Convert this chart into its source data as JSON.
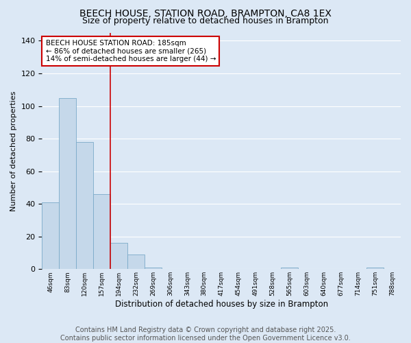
{
  "title": "BEECH HOUSE, STATION ROAD, BRAMPTON, CA8 1EX",
  "subtitle": "Size of property relative to detached houses in Brampton",
  "xlabel": "Distribution of detached houses by size in Brampton",
  "ylabel": "Number of detached properties",
  "categories": [
    "46sqm",
    "83sqm",
    "120sqm",
    "157sqm",
    "194sqm",
    "232sqm",
    "269sqm",
    "306sqm",
    "343sqm",
    "380sqm",
    "417sqm",
    "454sqm",
    "491sqm",
    "528sqm",
    "565sqm",
    "603sqm",
    "640sqm",
    "677sqm",
    "714sqm",
    "751sqm",
    "788sqm"
  ],
  "values": [
    41,
    105,
    78,
    46,
    16,
    9,
    1,
    0,
    0,
    0,
    0,
    0,
    0,
    0,
    1,
    0,
    0,
    0,
    0,
    1,
    0
  ],
  "bar_color": "#c5d8ea",
  "bar_edge_color": "#7aaac8",
  "vline_color": "#cc0000",
  "vline_x_index": 3.5,
  "annotation_text": "BEECH HOUSE STATION ROAD: 185sqm\n← 86% of detached houses are smaller (265)\n14% of semi-detached houses are larger (44) →",
  "annotation_box_color": "#ffffff",
  "annotation_box_edge": "#cc0000",
  "ylim": [
    0,
    145
  ],
  "yticks": [
    0,
    20,
    40,
    60,
    80,
    100,
    120,
    140
  ],
  "background_color": "#dce8f5",
  "grid_color": "#ffffff",
  "footer_line1": "Contains HM Land Registry data © Crown copyright and database right 2025.",
  "footer_line2": "Contains public sector information licensed under the Open Government Licence v3.0.",
  "title_fontsize": 10,
  "subtitle_fontsize": 9,
  "annotation_fontsize": 7.5,
  "footer_fontsize": 7,
  "ylabel_fontsize": 8,
  "xlabel_fontsize": 8.5
}
